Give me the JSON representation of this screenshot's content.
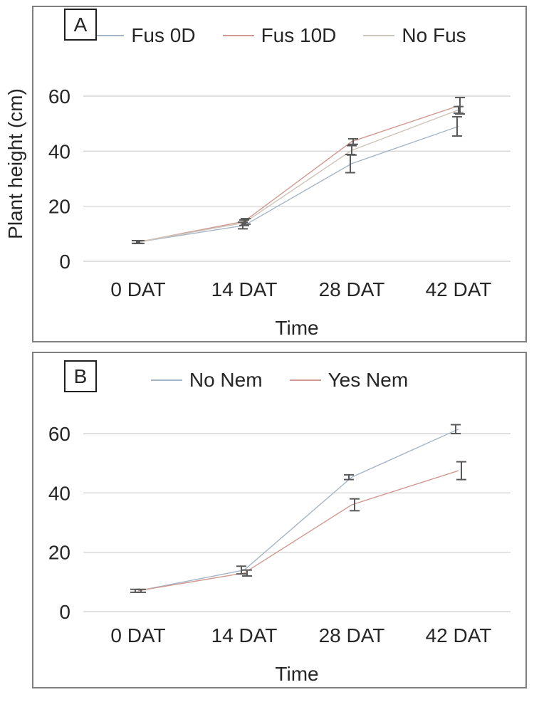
{
  "figure": {
    "shared_y_axis_label": "Plant height (cm)"
  },
  "colors": {
    "grid": "#d6d6d6",
    "error_bar": "#595959",
    "panel_border": "#7f7f7f",
    "text": "#262626"
  },
  "chart_data": [
    {
      "type": "line",
      "panel_label": "A",
      "xlabel": "Time",
      "ylabel": "Plant height (cm)",
      "categories": [
        "0 DAT",
        "14 DAT",
        "28 DAT",
        "42 DAT"
      ],
      "y_ticks": [
        0,
        20,
        40,
        60
      ],
      "ylim": [
        0,
        65
      ],
      "grid": true,
      "legend_position": "top",
      "error_bars": true,
      "series": [
        {
          "name": "Fus 0D",
          "color": "#a6b5c6",
          "values": [
            7,
            13,
            35.5,
            49
          ],
          "errors": [
            0.5,
            1.2,
            3.3,
            3.5
          ]
        },
        {
          "name": "Fus 10D",
          "color": "#d09a92",
          "values": [
            7,
            14.5,
            43.5,
            56.5
          ],
          "errors": [
            0.5,
            1,
            1,
            3
          ]
        },
        {
          "name": "No Fus",
          "color": "#cec5ba",
          "values": [
            7,
            14,
            40.3,
            55
          ],
          "errors": [
            0.5,
            1,
            1.7,
            1.2
          ]
        }
      ]
    },
    {
      "type": "line",
      "panel_label": "B",
      "xlabel": "Time",
      "ylabel": "Plant height (cm)",
      "categories": [
        "0 DAT",
        "14 DAT",
        "28 DAT",
        "42 DAT"
      ],
      "y_ticks": [
        0,
        20,
        40,
        60
      ],
      "ylim": [
        0,
        65
      ],
      "grid": true,
      "legend_position": "top",
      "error_bars": true,
      "series": [
        {
          "name": "No Nem",
          "color": "#a6b5c6",
          "values": [
            7,
            14,
            45.3,
            61.5
          ],
          "errors": [
            0.5,
            1.3,
            0.8,
            1.5
          ]
        },
        {
          "name": "Yes Nem",
          "color": "#d09a92",
          "values": [
            7,
            13,
            36,
            47.5
          ],
          "errors": [
            0.5,
            1,
            2,
            3
          ]
        }
      ]
    }
  ]
}
